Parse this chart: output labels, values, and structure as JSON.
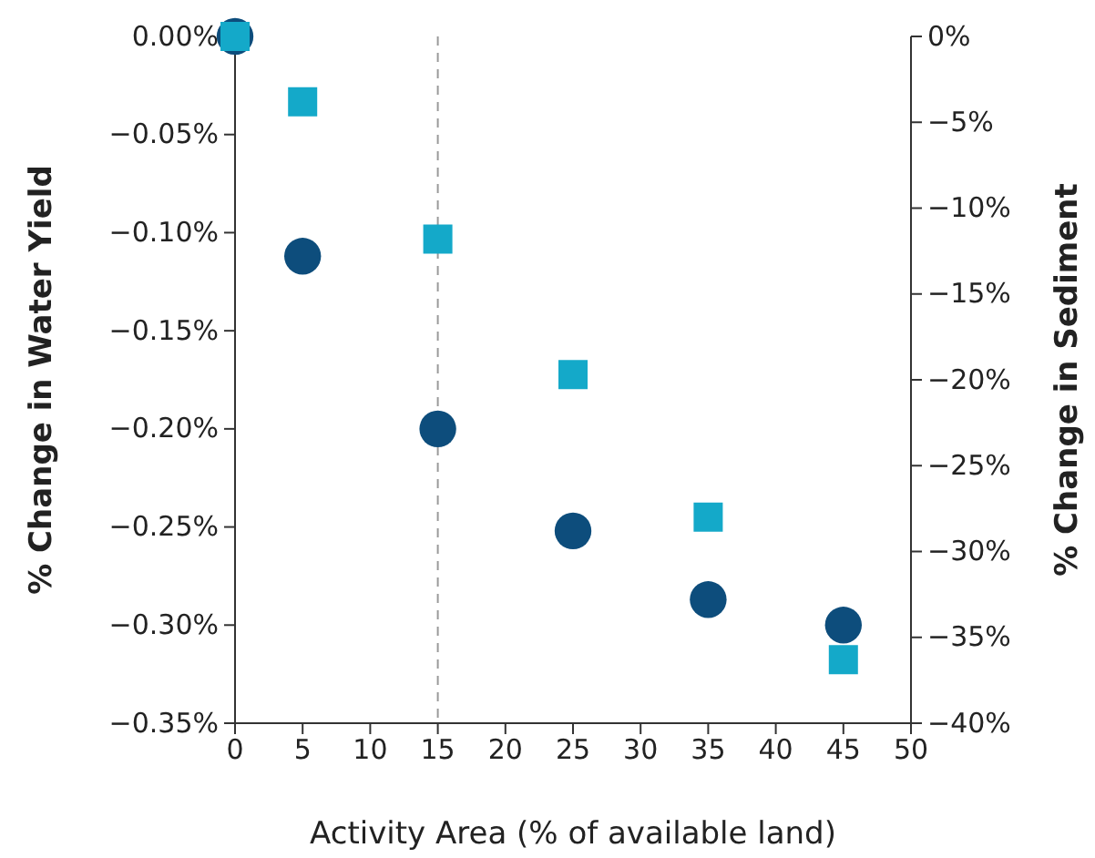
{
  "chart_data": {
    "type": "scatter",
    "xlabel": "Activity Area (% of available land)",
    "ylabel": "% Change in Water Yield",
    "y2label": "% Change in Sediment",
    "x": [
      0,
      5,
      15,
      25,
      35,
      45
    ],
    "xlim": [
      0,
      50
    ],
    "xticks": [
      0,
      5,
      10,
      15,
      20,
      25,
      30,
      35,
      40,
      45,
      50
    ],
    "ylim": [
      -0.35,
      0
    ],
    "yticks": [
      {
        "value": 0,
        "label": "0.00%"
      },
      {
        "value": -0.05,
        "label": "−0.05%"
      },
      {
        "value": -0.1,
        "label": "−0.10%"
      },
      {
        "value": -0.15,
        "label": "−0.15%"
      },
      {
        "value": -0.2,
        "label": "−0.20%"
      },
      {
        "value": -0.25,
        "label": "−0.25%"
      },
      {
        "value": -0.3,
        "label": "−0.30%"
      },
      {
        "value": -0.35,
        "label": "−0.35%"
      }
    ],
    "y2lim": [
      -40,
      0
    ],
    "y2ticks": [
      {
        "value": 0,
        "label": "0%"
      },
      {
        "value": -5,
        "label": "−5%"
      },
      {
        "value": -10,
        "label": "−10%"
      },
      {
        "value": -15,
        "label": "−15%"
      },
      {
        "value": -20,
        "label": "−20%"
      },
      {
        "value": -25,
        "label": "−25%"
      },
      {
        "value": -30,
        "label": "−30%"
      },
      {
        "value": -35,
        "label": "−35%"
      },
      {
        "value": -40,
        "label": "−40%"
      }
    ],
    "series": [
      {
        "color": "#0d4d7c",
        "marker": "circle",
        "values": [
          0,
          -0.112,
          -0.2,
          -0.252,
          -0.287,
          -0.3
        ]
      },
      {
        "color": "#14a9c9",
        "marker": "square",
        "axis": "y2",
        "values": [
          0,
          -3.8,
          -11.8,
          -19.7,
          -28.0,
          -36.3
        ]
      }
    ],
    "ref_lines": [
      {
        "axis": "x",
        "value": 15,
        "line_style": "dashed",
        "color": "#999999"
      }
    ],
    "grid": false
  }
}
